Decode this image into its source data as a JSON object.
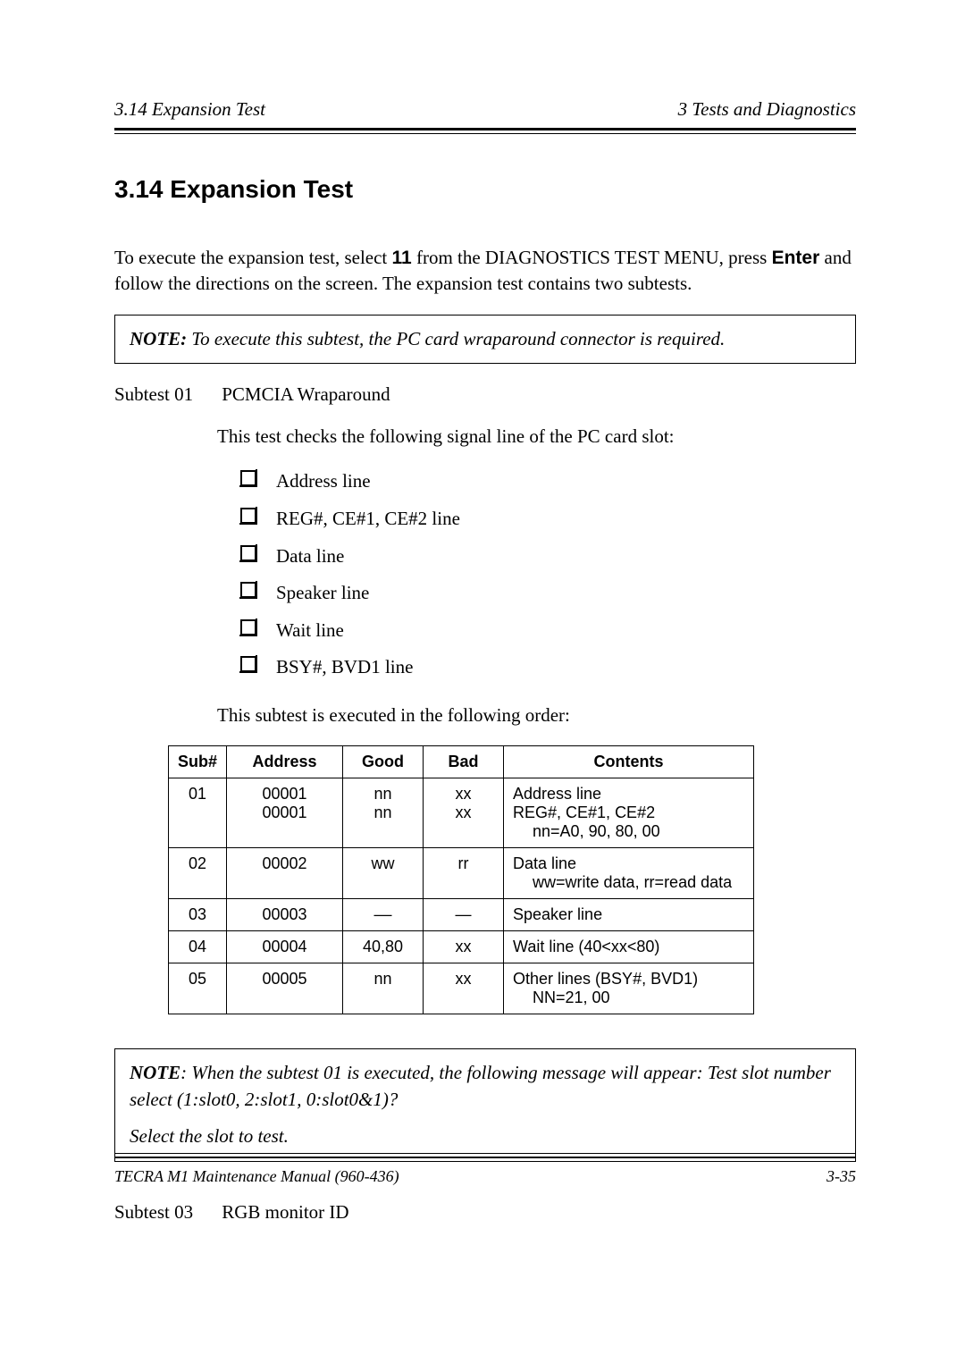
{
  "header": {
    "left": "3.14  Expansion Test",
    "right": "3   Tests and Diagnostics"
  },
  "heading": "3.14  Expansion Test",
  "intro": {
    "pre": "To execute the expansion test, select ",
    "select_num": "11",
    "mid": " from the DIAGNOSTICS TEST MENU, press ",
    "enter": "Enter",
    "post": " and follow the directions on the screen. The expansion test contains two subtests."
  },
  "note1": {
    "label": "NOTE:",
    "text": "  To execute this subtest, the PC card wraparound connector is required."
  },
  "subtest01": {
    "label": "Subtest 01",
    "title": "PCMCIA Wraparound",
    "desc1": "This test checks the following signal line of the PC card slot:",
    "items": [
      "Address line",
      "REG#, CE#1, CE#2 line",
      "Data line",
      "Speaker line",
      "Wait line",
      "BSY#, BVD1 line"
    ],
    "desc2": "This subtest is executed in the following order:"
  },
  "table": {
    "headers": [
      "Sub#",
      "Address",
      "Good",
      "Bad",
      "Contents"
    ],
    "rows": [
      {
        "sub": "01",
        "address": "00001\n00001",
        "good": "nn\nnn",
        "bad": "xx\nxx",
        "contents_lines": [
          "Address line",
          "REG#, CE#1, CE#2"
        ],
        "contents_indent": "nn=A0, 90, 80, 00"
      },
      {
        "sub": "02",
        "address": "00002",
        "good": "ww",
        "bad": "rr",
        "contents_lines": [
          "Data line"
        ],
        "contents_indent": "ww=write data, rr=read data"
      },
      {
        "sub": "03",
        "address": "00003",
        "good": "––",
        "bad": "—",
        "contents_lines": [
          "Speaker line"
        ],
        "contents_indent": ""
      },
      {
        "sub": "04",
        "address": "00004",
        "good": "40,80",
        "bad": "xx",
        "contents_lines": [
          "Wait line (40<xx<80)"
        ],
        "contents_indent": ""
      },
      {
        "sub": "05",
        "address": "00005",
        "good": "nn",
        "bad": "xx",
        "contents_lines": [
          "Other lines (BSY#, BVD1)"
        ],
        "contents_indent": "NN=21, 00"
      }
    ]
  },
  "note2": {
    "label": "NOTE",
    "text1": ": When the subtest 01 is executed, the following message will appear: Test slot number select (1:slot0, 2:slot1, 0:slot0&1)?",
    "text2": "Select the slot to test."
  },
  "subtest03": {
    "label": "Subtest 03",
    "title": "RGB monitor ID"
  },
  "footer": {
    "left": "TECRA M1 Maintenance Manual (960-436)",
    "right": "3-35"
  }
}
